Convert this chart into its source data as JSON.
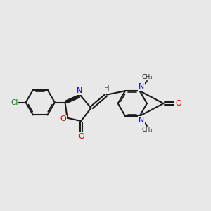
{
  "bg_color": "#e8e8e8",
  "bond_color": "#1a1a1a",
  "cl_color": "#007700",
  "o_color": "#cc0000",
  "n_color": "#0000bb",
  "h_color": "#446666",
  "lw": 1.5,
  "lwi": 1.2,
  "figsize": [
    3.0,
    3.0
  ],
  "dpi": 100,
  "xlim": [
    0,
    10
  ],
  "ylim": [
    0,
    10
  ]
}
